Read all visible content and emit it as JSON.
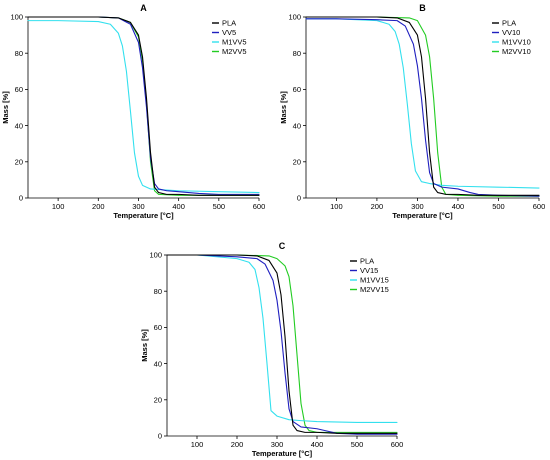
{
  "chart_data": [
    {
      "type": "line",
      "title": "A",
      "xlabel": "Temperature [°C]",
      "ylabel": "Mass [%]",
      "xlim": [
        25,
        600
      ],
      "ylim": [
        0,
        100
      ],
      "xticks": [
        100,
        200,
        300,
        400,
        500,
        600
      ],
      "yticks": [
        0,
        20,
        40,
        60,
        80,
        100
      ],
      "grid": false,
      "legend": "top-right",
      "series": [
        {
          "name": "PLA",
          "color": "#000000",
          "x": [
            25,
            100,
            200,
            250,
            280,
            300,
            310,
            320,
            330,
            340,
            350,
            370,
            400,
            450,
            500,
            600
          ],
          "y": [
            100,
            100,
            100,
            99.5,
            97,
            90,
            78,
            55,
            25,
            6,
            3,
            2,
            2,
            1.5,
            1.5,
            1.5
          ]
        },
        {
          "name": "VV5",
          "color": "#1f1fbf",
          "x": [
            25,
            100,
            200,
            250,
            280,
            300,
            310,
            320,
            330,
            340,
            350,
            370,
            400,
            450,
            500,
            600
          ],
          "y": [
            100,
            100,
            100,
            99.5,
            96,
            86,
            72,
            50,
            22,
            8,
            5,
            4,
            3.5,
            2.5,
            2,
            2
          ]
        },
        {
          "name": "M1VV5",
          "color": "#33e0ee",
          "x": [
            25,
            100,
            200,
            230,
            250,
            260,
            270,
            280,
            290,
            300,
            310,
            330,
            360,
            400,
            500,
            600
          ],
          "y": [
            98,
            98,
            97.5,
            96,
            91,
            84,
            70,
            48,
            25,
            12,
            7,
            5,
            4.5,
            4,
            3.5,
            3
          ]
        },
        {
          "name": "M2VV5",
          "color": "#22cc22",
          "x": [
            25,
            100,
            200,
            250,
            280,
            300,
            310,
            320,
            330,
            340,
            350,
            400,
            500,
            600
          ],
          "y": [
            100,
            100,
            100,
            99.5,
            97,
            89,
            76,
            52,
            20,
            4,
            2,
            1.5,
            1.5,
            1.5
          ]
        }
      ]
    },
    {
      "type": "line",
      "title": "B",
      "xlabel": "Temperature [°C]",
      "ylabel": "Mass [%]",
      "xlim": [
        25,
        600
      ],
      "ylim": [
        0,
        100
      ],
      "xticks": [
        100,
        200,
        300,
        400,
        500,
        600
      ],
      "yticks": [
        0,
        20,
        40,
        60,
        80,
        100
      ],
      "grid": false,
      "legend": "top-right",
      "series": [
        {
          "name": "PLA",
          "color": "#000000",
          "x": [
            25,
            100,
            200,
            250,
            280,
            300,
            310,
            320,
            330,
            340,
            350,
            370,
            400,
            450,
            500,
            600
          ],
          "y": [
            100,
            100,
            100,
            99.5,
            97,
            90,
            78,
            55,
            25,
            6,
            3,
            2,
            2,
            1.5,
            1.5,
            1.5
          ]
        },
        {
          "name": "VV10",
          "color": "#1f1fbf",
          "x": [
            25,
            100,
            200,
            250,
            270,
            290,
            300,
            310,
            320,
            330,
            340,
            360,
            400,
            430,
            450,
            500,
            600
          ],
          "y": [
            99,
            99,
            98.5,
            98,
            95,
            85,
            73,
            55,
            32,
            14,
            8,
            6,
            5,
            3,
            2,
            1.5,
            1
          ]
        },
        {
          "name": "M1VV10",
          "color": "#33e0ee",
          "x": [
            25,
            100,
            200,
            230,
            245,
            255,
            265,
            275,
            285,
            295,
            310,
            330,
            360,
            400,
            500,
            600
          ],
          "y": [
            99,
            99,
            98,
            96,
            92,
            85,
            72,
            52,
            30,
            15,
            9,
            8,
            7,
            6.5,
            6,
            5.5
          ]
        },
        {
          "name": "M2VV10",
          "color": "#22cc22",
          "x": [
            25,
            100,
            200,
            280,
            300,
            320,
            330,
            340,
            350,
            360,
            370,
            400,
            500,
            600
          ],
          "y": [
            100,
            100,
            100,
            99.5,
            98,
            90,
            78,
            55,
            25,
            6,
            2,
            1.5,
            1,
            1
          ]
        }
      ]
    },
    {
      "type": "line",
      "title": "C",
      "xlabel": "Temperature [°C]",
      "ylabel": "Mass [%]",
      "xlim": [
        25,
        600
      ],
      "ylim": [
        0,
        100
      ],
      "xticks": [
        100,
        200,
        300,
        400,
        500,
        600
      ],
      "yticks": [
        0,
        20,
        40,
        60,
        80,
        100
      ],
      "grid": false,
      "legend": "top-right",
      "series": [
        {
          "name": "PLA",
          "color": "#000000",
          "x": [
            25,
            100,
            200,
            250,
            280,
            300,
            310,
            320,
            330,
            340,
            350,
            370,
            400,
            450,
            500,
            600
          ],
          "y": [
            100,
            100,
            100,
            99.5,
            97,
            90,
            78,
            55,
            25,
            6,
            3,
            2,
            2,
            1.5,
            1.5,
            1.5
          ]
        },
        {
          "name": "VV15",
          "color": "#1f1fbf",
          "x": [
            25,
            100,
            200,
            250,
            270,
            290,
            300,
            310,
            320,
            330,
            340,
            360,
            400,
            430,
            450,
            500,
            600
          ],
          "y": [
            100,
            100,
            99,
            98,
            95,
            86,
            75,
            58,
            35,
            15,
            8,
            5,
            4,
            2.5,
            1.5,
            1,
            1
          ]
        },
        {
          "name": "M1VV15",
          "color": "#33e0ee",
          "x": [
            25,
            100,
            200,
            230,
            245,
            255,
            265,
            275,
            285,
            300,
            330,
            360,
            400,
            500,
            600
          ],
          "y": [
            100,
            100,
            98,
            96,
            92,
            82,
            65,
            40,
            14,
            11,
            9,
            8.5,
            8,
            7.5,
            7.5
          ]
        },
        {
          "name": "M2VV15",
          "color": "#22cc22",
          "x": [
            25,
            100,
            200,
            280,
            300,
            320,
            330,
            340,
            350,
            360,
            370,
            380,
            400,
            500,
            600
          ],
          "y": [
            100,
            100,
            100,
            99.5,
            98,
            94,
            88,
            72,
            45,
            18,
            6,
            3,
            2,
            2,
            2
          ]
        }
      ]
    }
  ]
}
